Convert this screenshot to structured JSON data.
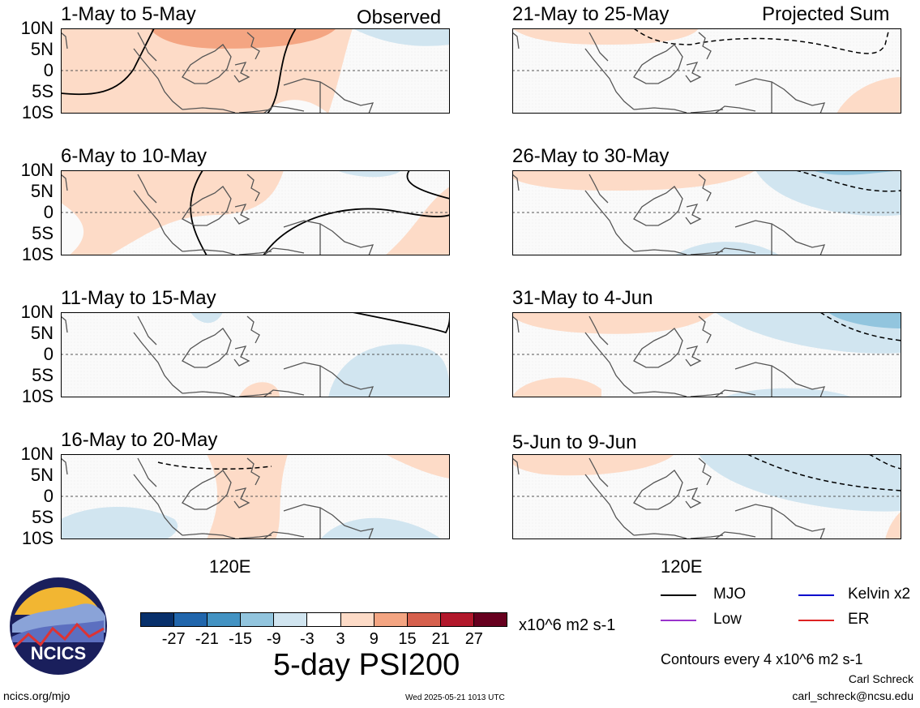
{
  "header": {
    "left_label": "Observed",
    "right_label": "Projected Sum"
  },
  "lat_labels": [
    "10N",
    "5N",
    "0",
    "5S",
    "10S"
  ],
  "panels": {
    "left": [
      {
        "title": "1-May to 5-May"
      },
      {
        "title": "6-May to 10-May"
      },
      {
        "title": "11-May to 15-May"
      },
      {
        "title": "16-May to 20-May"
      }
    ],
    "right": [
      {
        "title": "21-May to 25-May"
      },
      {
        "title": "26-May to 30-May"
      },
      {
        "title": "31-May to 4-Jun"
      },
      {
        "title": "5-Jun to 9-Jun"
      }
    ]
  },
  "lon_label": "120E",
  "colorbar": {
    "colors": [
      "#08306b",
      "#2166ac",
      "#4393c3",
      "#92c5de",
      "#d1e5f0",
      "#ffffff",
      "#fddbc7",
      "#f4a582",
      "#d6604d",
      "#b2182b",
      "#67001f"
    ],
    "ticks": [
      "-27",
      "-21",
      "-15",
      "-9",
      "-3",
      "3",
      "9",
      "15",
      "21",
      "27"
    ],
    "units": "x10^6 m2 s-1",
    "title": "5-day PSI200"
  },
  "legend": [
    {
      "label": "MJO",
      "color": "#000000"
    },
    {
      "label": "Kelvin x2",
      "color": "#0000cc"
    },
    {
      "label": "Low",
      "color": "#9933cc"
    },
    {
      "label": "ER",
      "color": "#dd2222"
    }
  ],
  "contour_note": "Contours every 4 x10^6 m2 s-1",
  "footer": {
    "author": "Carl Schreck",
    "email": "carl_schreck@ncsu.edu",
    "url": "ncics.org/mjo",
    "timestamp": "Wed 2025-05-21 1013 UTC"
  },
  "logo": {
    "text": "NCICS"
  }
}
